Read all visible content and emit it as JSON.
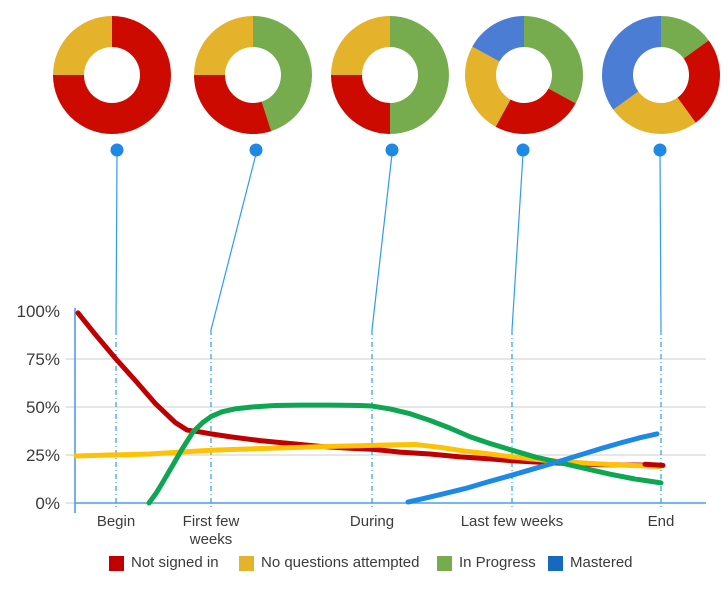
{
  "chart_data": {
    "type": "line",
    "title": "",
    "x_tick_labels": [
      "Begin",
      "First few weeks",
      "During",
      "Last few weeks",
      "End"
    ],
    "y_tick_labels": [
      "100%",
      "75%",
      "50%",
      "25%",
      "0%"
    ],
    "ylim": [
      0,
      100
    ],
    "grid": true,
    "legend_position": "bottom",
    "series": [
      {
        "name": "Not signed in",
        "line_color": "#c00000",
        "points": [
          [
            78,
            99
          ],
          [
            95,
            88
          ],
          [
            116,
            75
          ],
          [
            135,
            64
          ],
          [
            155,
            52
          ],
          [
            175,
            42
          ],
          [
            187,
            38
          ],
          [
            200,
            37
          ],
          [
            211,
            36
          ],
          [
            230,
            34.5
          ],
          [
            260,
            32.5
          ],
          [
            290,
            31
          ],
          [
            320,
            29.5
          ],
          [
            350,
            28.5
          ],
          [
            372,
            28
          ],
          [
            400,
            26.5
          ],
          [
            430,
            25.5
          ],
          [
            460,
            24
          ],
          [
            490,
            23
          ],
          [
            512,
            22
          ],
          [
            540,
            21.2
          ],
          [
            570,
            20.5
          ],
          [
            600,
            20
          ],
          [
            630,
            19.8
          ],
          [
            662,
            19.6
          ]
        ]
      },
      {
        "name": "No questions attempted",
        "line_color": "#ffc103",
        "points": [
          [
            76,
            24.5
          ],
          [
            110,
            25
          ],
          [
            150,
            25.5
          ],
          [
            180,
            26.5
          ],
          [
            211,
            27.5
          ],
          [
            240,
            28
          ],
          [
            270,
            28.5
          ],
          [
            300,
            29
          ],
          [
            330,
            29.5
          ],
          [
            360,
            29.8
          ],
          [
            372,
            30
          ],
          [
            395,
            30.3
          ],
          [
            415,
            30.5
          ],
          [
            440,
            29
          ],
          [
            465,
            27
          ],
          [
            490,
            25.5
          ],
          [
            512,
            24
          ],
          [
            540,
            22.5
          ],
          [
            570,
            21.3
          ],
          [
            600,
            20.3
          ],
          [
            630,
            19.6
          ],
          [
            660,
            19
          ]
        ]
      },
      {
        "name": "In Progress",
        "line_color": "#0da751",
        "points": [
          [
            149,
            0
          ],
          [
            156,
            5
          ],
          [
            163,
            11
          ],
          [
            172,
            19
          ],
          [
            182,
            28
          ],
          [
            193,
            37
          ],
          [
            203,
            42
          ],
          [
            211,
            45
          ],
          [
            222,
            47.5
          ],
          [
            235,
            49
          ],
          [
            252,
            50
          ],
          [
            275,
            50.8
          ],
          [
            300,
            51
          ],
          [
            330,
            51
          ],
          [
            360,
            50.8
          ],
          [
            372,
            50.5
          ],
          [
            390,
            49
          ],
          [
            410,
            46.5
          ],
          [
            430,
            43
          ],
          [
            450,
            39
          ],
          [
            470,
            34.5
          ],
          [
            490,
            31
          ],
          [
            512,
            27.5
          ],
          [
            535,
            24
          ],
          [
            560,
            21
          ],
          [
            585,
            18
          ],
          [
            610,
            15
          ],
          [
            635,
            12.5
          ],
          [
            661,
            10.5
          ]
        ]
      },
      {
        "name": "Mastered",
        "line_color": "#1e88e5",
        "points": [
          [
            408,
            0.5
          ],
          [
            425,
            2.5
          ],
          [
            445,
            5
          ],
          [
            465,
            7.5
          ],
          [
            488,
            11
          ],
          [
            512,
            14.5
          ],
          [
            535,
            18
          ],
          [
            558,
            21.5
          ],
          [
            580,
            25
          ],
          [
            602,
            28.5
          ],
          [
            622,
            31.5
          ],
          [
            640,
            34
          ],
          [
            657,
            36
          ]
        ]
      }
    ],
    "red_end_cap": [
      [
        645,
        20.2
      ],
      [
        663,
        19.6
      ]
    ],
    "values_at_ticks": {
      "Not signed in": [
        75,
        36,
        28,
        22,
        20
      ],
      "No questions attempted": [
        25,
        28,
        30,
        24,
        19
      ],
      "In Progress": [
        0,
        45,
        51,
        28,
        10
      ],
      "Mastered": [
        null,
        null,
        0,
        15,
        36
      ]
    },
    "donuts": [
      {
        "label": "Begin",
        "slices": [
          {
            "name": "Not signed in",
            "value": 75
          },
          {
            "name": "No questions attempted",
            "value": 25
          }
        ]
      },
      {
        "label": "First few weeks",
        "slices": [
          {
            "name": "In Progress",
            "value": 45
          },
          {
            "name": "Not signed in",
            "value": 30
          },
          {
            "name": "No questions attempted",
            "value": 25
          }
        ]
      },
      {
        "label": "During",
        "slices": [
          {
            "name": "In Progress",
            "value": 50
          },
          {
            "name": "Not signed in",
            "value": 25
          },
          {
            "name": "No questions attempted",
            "value": 25
          }
        ]
      },
      {
        "label": "Last few weeks",
        "slices": [
          {
            "name": "In Progress",
            "value": 33
          },
          {
            "name": "Not signed in",
            "value": 25
          },
          {
            "name": "No questions attempted",
            "value": 25
          },
          {
            "name": "Mastered",
            "value": 17
          }
        ]
      },
      {
        "label": "End",
        "slices": [
          {
            "name": "In Progress",
            "value": 15
          },
          {
            "name": "Not signed in",
            "value": 25
          },
          {
            "name": "No questions attempted",
            "value": 25
          },
          {
            "name": "Mastered",
            "value": 35
          }
        ]
      }
    ],
    "donut_colors": {
      "Not signed in": "#cc0a00",
      "No questions attempted": "#e5b32b",
      "In Progress": "#77ac4e",
      "Mastered": "#4a7dd3"
    }
  },
  "legend": {
    "items": [
      {
        "label": "Not signed in",
        "color": "#c00000"
      },
      {
        "label": "No questions attempted",
        "color": "#e5b32b"
      },
      {
        "label": "In Progress",
        "color": "#77ac4e"
      },
      {
        "label": "Mastered",
        "color": "#1769be"
      }
    ]
  },
  "style_colors": {
    "axis": "#4d9ee8",
    "gridline": "#d6d6d6",
    "connector": "#2e9bf0",
    "callout_dot": "#1e88e5",
    "text": "#3b3b3b"
  }
}
